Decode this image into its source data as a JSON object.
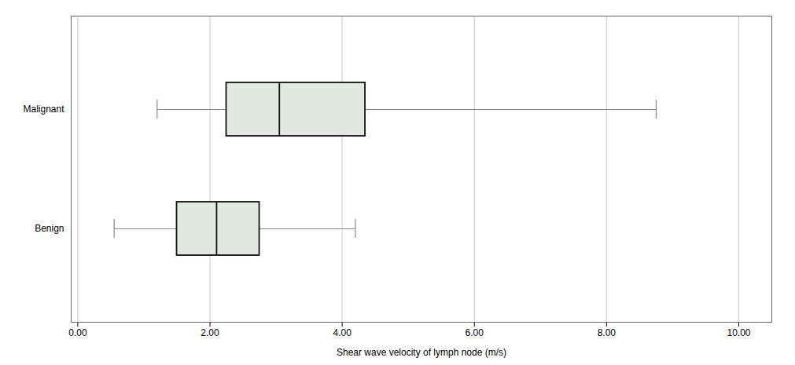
{
  "chart_data": {
    "type": "box",
    "orientation": "horizontal",
    "categories": [
      "Benign",
      "Malignant"
    ],
    "whislo": [
      0.55,
      1.2
    ],
    "q1": [
      1.5,
      2.25
    ],
    "med": [
      2.1,
      3.05
    ],
    "q3": [
      2.75,
      4.35
    ],
    "whishi": [
      4.2,
      8.75
    ],
    "xlabel": "Shear wave velocity of lymph node (m/s)",
    "xlim": [
      -0.1,
      10.5
    ],
    "xticks": [
      {
        "value": 0.0,
        "label": "0.00"
      },
      {
        "value": 2.0,
        "label": "2.00"
      },
      {
        "value": 4.0,
        "label": "4.00"
      },
      {
        "value": 6.0,
        "label": "6.00"
      },
      {
        "value": 8.0,
        "label": "8.00"
      },
      {
        "value": 10.0,
        "label": "10.00"
      }
    ],
    "color": "#e0e8e0",
    "grid": true
  }
}
